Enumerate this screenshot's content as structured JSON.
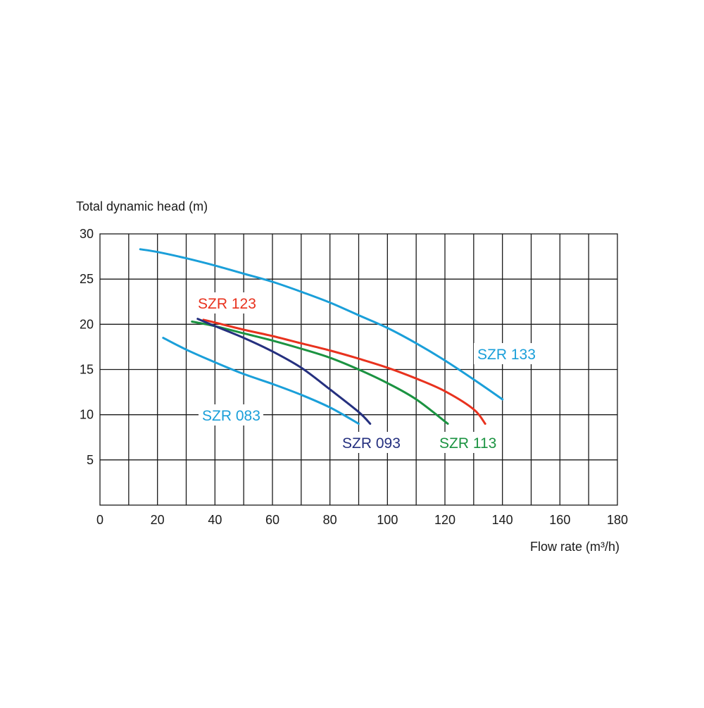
{
  "chart_data": {
    "type": "line",
    "ylabel": "Total dynamic head (m)",
    "xlabel": "Flow rate (m³/h)",
    "xlim": [
      0,
      180
    ],
    "ylim": [
      0,
      30
    ],
    "x_ticks": [
      0,
      20,
      40,
      60,
      80,
      100,
      120,
      140,
      160,
      180
    ],
    "x_tick_labels": [
      "0",
      "20",
      "40",
      "60",
      "80",
      "100",
      "120",
      "140",
      "160",
      "180"
    ],
    "x_grid_step": 10,
    "y_ticks": [
      5,
      10,
      15,
      20,
      25,
      30
    ],
    "y_tick_labels": [
      "5",
      "10",
      "15",
      "20",
      "25",
      "30"
    ],
    "grid": true,
    "series": [
      {
        "name": "SZR 133",
        "color": "#1a9fd9",
        "points": [
          [
            14,
            28.3
          ],
          [
            20,
            28.0
          ],
          [
            30,
            27.3
          ],
          [
            40,
            26.5
          ],
          [
            50,
            25.6
          ],
          [
            60,
            24.7
          ],
          [
            70,
            23.6
          ],
          [
            80,
            22.4
          ],
          [
            90,
            21.0
          ],
          [
            100,
            19.6
          ],
          [
            110,
            17.9
          ],
          [
            120,
            16.0
          ],
          [
            130,
            13.9
          ],
          [
            140,
            11.7
          ]
        ]
      },
      {
        "name": "SZR 123",
        "color": "#e8321e",
        "points": [
          [
            36,
            20.5
          ],
          [
            40,
            20.2
          ],
          [
            50,
            19.4
          ],
          [
            60,
            18.7
          ],
          [
            70,
            17.9
          ],
          [
            80,
            17.1
          ],
          [
            90,
            16.2
          ],
          [
            100,
            15.2
          ],
          [
            110,
            14.0
          ],
          [
            120,
            12.6
          ],
          [
            130,
            10.6
          ],
          [
            134,
            9.0
          ]
        ]
      },
      {
        "name": "SZR 113",
        "color": "#1b9341",
        "points": [
          [
            32,
            20.3
          ],
          [
            40,
            19.8
          ],
          [
            50,
            19.0
          ],
          [
            60,
            18.2
          ],
          [
            70,
            17.3
          ],
          [
            80,
            16.3
          ],
          [
            90,
            15.0
          ],
          [
            100,
            13.5
          ],
          [
            110,
            11.7
          ],
          [
            121,
            9.0
          ]
        ]
      },
      {
        "name": "SZR 093",
        "color": "#25307f",
        "points": [
          [
            34,
            20.6
          ],
          [
            40,
            19.8
          ],
          [
            50,
            18.5
          ],
          [
            60,
            17.0
          ],
          [
            70,
            15.2
          ],
          [
            80,
            12.8
          ],
          [
            90,
            10.3
          ],
          [
            94,
            9.0
          ]
        ]
      },
      {
        "name": "SZR 083",
        "color": "#1a9fd9",
        "points": [
          [
            22,
            18.5
          ],
          [
            30,
            17.2
          ],
          [
            40,
            15.8
          ],
          [
            50,
            14.5
          ],
          [
            60,
            13.4
          ],
          [
            70,
            12.2
          ],
          [
            80,
            10.8
          ],
          [
            90,
            9.0
          ]
        ]
      }
    ]
  }
}
